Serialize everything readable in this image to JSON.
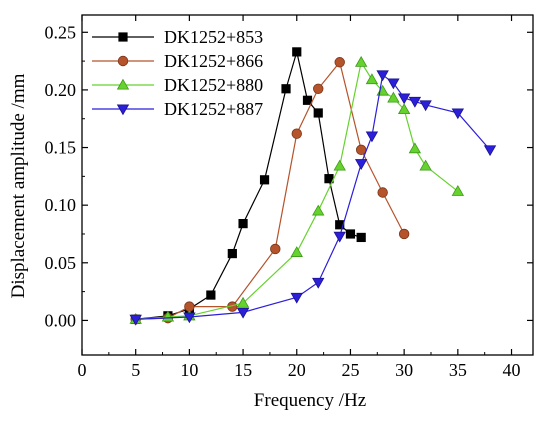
{
  "chart_data": {
    "type": "line",
    "title": "",
    "xlabel": "Frequency /Hz",
    "ylabel": "Displacement amplitude /mm",
    "xlim": [
      0,
      42
    ],
    "ylim": [
      -0.03,
      0.265
    ],
    "xticks": [
      0,
      5,
      10,
      15,
      20,
      25,
      30,
      35,
      40
    ],
    "yticks": [
      0.0,
      0.05,
      0.1,
      0.15,
      0.2,
      0.25
    ],
    "xtick_labels": [
      "0",
      "5",
      "10",
      "15",
      "20",
      "25",
      "30",
      "35",
      "40"
    ],
    "ytick_labels": [
      "0.00",
      "0.05",
      "0.10",
      "0.15",
      "0.20",
      "0.25"
    ],
    "grid": false,
    "legend_position": "top-left",
    "series": [
      {
        "name": "DK1252+853",
        "color": "#000000",
        "marker": "square",
        "x": [
          5,
          8,
          10,
          12,
          14,
          15,
          17,
          19,
          20,
          21,
          22,
          23,
          24,
          25,
          26
        ],
        "y": [
          0.001,
          0.004,
          0.01,
          0.022,
          0.058,
          0.084,
          0.122,
          0.201,
          0.233,
          0.191,
          0.18,
          0.123,
          0.083,
          0.075,
          0.072
        ]
      },
      {
        "name": "DK1252+866",
        "color": "#b5532a",
        "marker": "circle",
        "x": [
          5,
          8,
          10,
          14,
          18,
          20,
          22,
          24,
          26,
          28,
          30
        ],
        "y": [
          0.001,
          0.002,
          0.012,
          0.012,
          0.062,
          0.162,
          0.201,
          0.224,
          0.148,
          0.111,
          0.075
        ]
      },
      {
        "name": "DK1252+880",
        "color": "#66d22e",
        "marker": "triangle-up",
        "x": [
          5,
          8,
          10,
          15,
          20,
          22,
          24,
          26,
          27,
          28,
          29,
          30,
          31,
          32,
          35
        ],
        "y": [
          0.001,
          0.003,
          0.004,
          0.015,
          0.059,
          0.095,
          0.134,
          0.224,
          0.209,
          0.199,
          0.193,
          0.183,
          0.149,
          0.134,
          0.112
        ]
      },
      {
        "name": "DK1252+887",
        "color": "#2b1fd9",
        "marker": "triangle-down",
        "x": [
          5,
          10,
          15,
          20,
          22,
          24,
          26,
          27,
          28,
          29,
          30,
          31,
          32,
          35,
          38
        ],
        "y": [
          0.001,
          0.003,
          0.007,
          0.02,
          0.033,
          0.073,
          0.136,
          0.16,
          0.213,
          0.206,
          0.193,
          0.19,
          0.187,
          0.18,
          0.148
        ]
      }
    ]
  }
}
